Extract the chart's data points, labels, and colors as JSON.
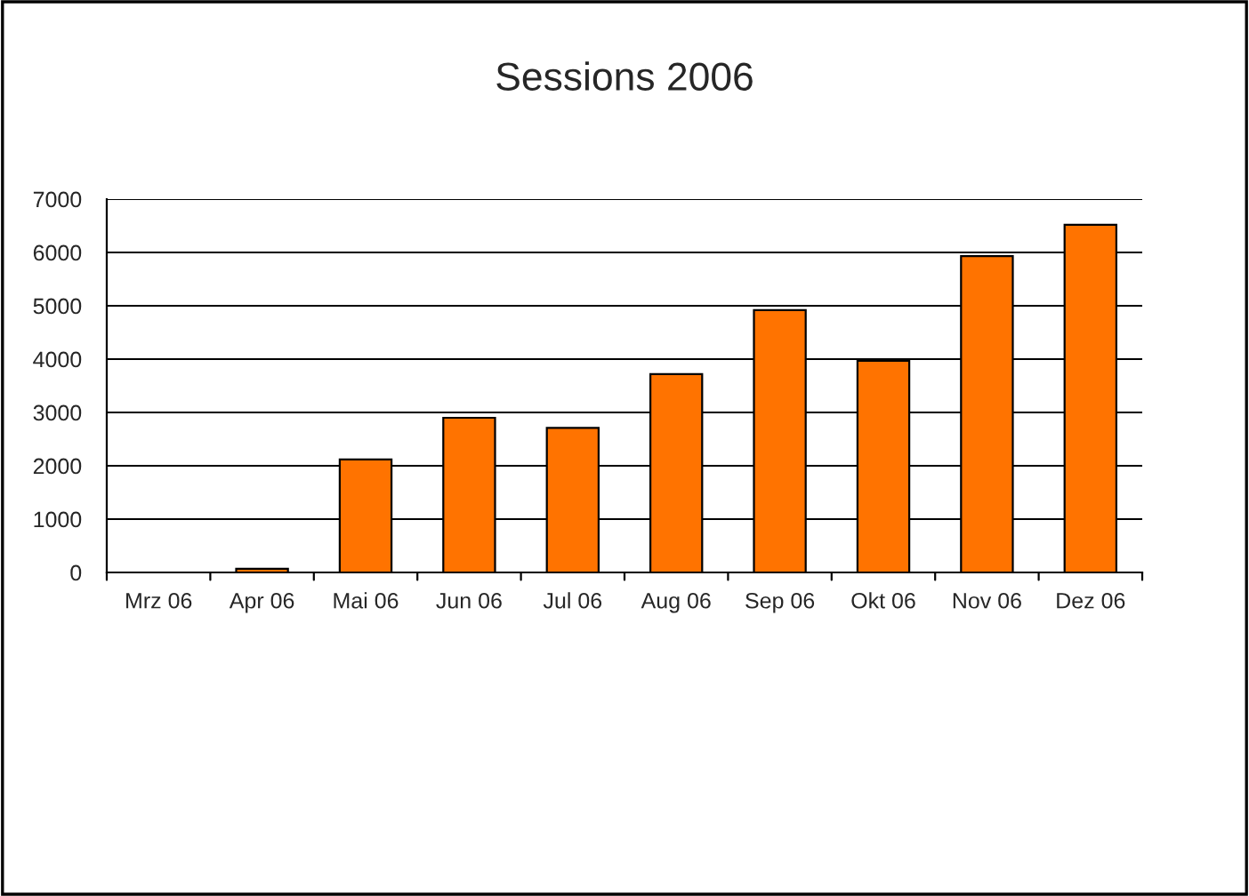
{
  "chart_data": {
    "type": "bar",
    "title": "Sessions 2006",
    "categories": [
      "Mrz 06",
      "Apr 06",
      "Mai 06",
      "Jun 06",
      "Jul 06",
      "Aug 06",
      "Sep 06",
      "Okt 06",
      "Nov 06",
      "Dez 06"
    ],
    "series": [
      {
        "color": "#ff7300",
        "values": [
          null,
          70,
          2120,
          2900,
          2710,
          3720,
          4920,
          3970,
          5930,
          6520
        ]
      }
    ],
    "ylim": [
      0,
      7000
    ],
    "yticks": [
      0,
      1000,
      2000,
      3000,
      4000,
      5000,
      6000,
      7000
    ],
    "grid": "y",
    "legend": false
  }
}
